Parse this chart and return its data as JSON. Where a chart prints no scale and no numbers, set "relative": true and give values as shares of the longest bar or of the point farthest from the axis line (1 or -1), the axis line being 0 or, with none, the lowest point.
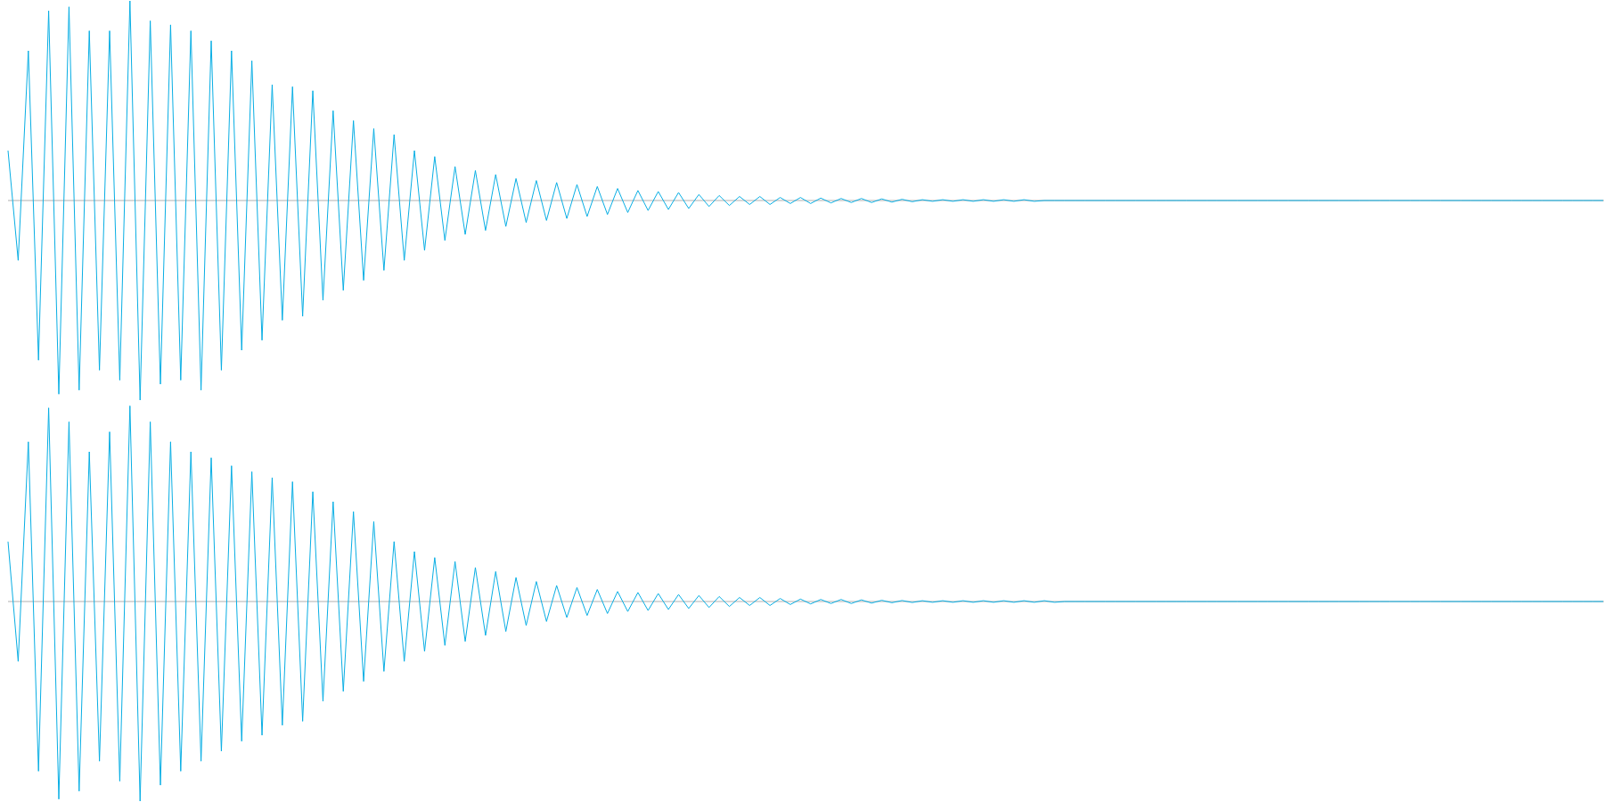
{
  "chart_data": [
    {
      "type": "line",
      "relative": true,
      "categories": [
        null,
        null,
        null,
        null,
        null,
        null,
        null,
        null,
        null,
        null,
        null,
        null,
        null,
        null,
        null,
        null,
        null,
        null,
        null,
        null,
        null,
        null,
        null,
        null,
        null,
        null,
        null,
        null,
        null,
        null,
        null,
        null,
        null,
        null,
        null,
        null,
        null,
        null,
        null,
        null,
        null,
        null,
        null,
        null,
        null,
        null,
        null,
        null,
        null,
        null,
        null,
        null,
        null,
        null,
        null,
        null,
        null,
        null,
        null,
        null,
        null,
        null,
        null,
        null,
        null,
        null,
        null,
        null,
        null,
        null,
        null,
        null,
        null,
        null,
        null,
        null,
        null,
        null,
        null,
        null,
        null,
        null,
        null,
        null,
        null,
        null,
        null,
        null,
        null,
        null,
        null,
        null,
        null,
        null,
        null,
        null,
        null,
        null,
        null,
        null,
        null,
        null,
        null,
        null,
        null,
        null,
        null,
        null,
        null,
        null,
        null,
        null,
        null,
        null,
        null,
        null,
        null,
        null,
        null,
        null,
        null,
        null,
        null,
        null,
        null,
        null,
        null,
        null,
        null,
        null,
        null,
        null,
        null,
        null,
        null,
        null,
        null,
        null,
        null,
        null,
        null,
        null,
        null,
        null,
        null,
        null,
        null,
        null,
        null,
        null,
        null,
        null,
        null,
        null,
        null,
        null,
        null,
        null
      ],
      "series": [
        {
          "color": "#08aee4",
          "values": [
            0.25,
            -0.3,
            0.75,
            -0.8,
            0.95,
            -0.97,
            0.97,
            -0.95,
            0.85,
            -0.85,
            0.85,
            -0.9,
            1,
            -1,
            0.9,
            -0.92,
            0.88,
            -0.9,
            0.85,
            -0.95,
            0.8,
            -0.85,
            0.75,
            -0.75,
            0.7,
            -0.7,
            0.58,
            -0.6,
            0.57,
            -0.58,
            0.55,
            -0.5,
            0.45,
            -0.45,
            0.4,
            -0.4,
            0.36,
            -0.35,
            0.33,
            -0.3,
            0.25,
            -0.25,
            0.22,
            -0.2,
            0.17,
            -0.17,
            0.15,
            -0.15,
            0.13,
            -0.13,
            0.11,
            -0.11,
            0.1,
            -0.1,
            0.09,
            -0.09,
            0.08,
            -0.08,
            0.07,
            -0.07,
            0.06,
            -0.06,
            0.05,
            -0.05,
            0.045,
            -0.045,
            0.04,
            -0.04,
            0.03,
            -0.03,
            0.025,
            -0.025,
            0.02,
            -0.02,
            0.02,
            -0.02,
            0.015,
            -0.015,
            0.015,
            -0.015,
            0.012,
            -0.012,
            0.01,
            -0.01,
            0.01,
            -0.01,
            0.008,
            -0.008,
            0.006,
            -0.006,
            0.004,
            -0.004,
            0.004,
            -0.004,
            0.004,
            -0.004,
            0.004,
            -0.004,
            0.004,
            -0.004,
            0.004,
            -0.004,
            0,
            0,
            0,
            0,
            0,
            0,
            0,
            0,
            0,
            0,
            0,
            0,
            0,
            0,
            0,
            0,
            0,
            0,
            0,
            0,
            0,
            0,
            0,
            0,
            0,
            0,
            0,
            0,
            0,
            0,
            0,
            0,
            0,
            0,
            0,
            0,
            0,
            0,
            0,
            0,
            0,
            0,
            0,
            0,
            0,
            0,
            0,
            0,
            0,
            0,
            0,
            0,
            0,
            0,
            0,
            0
          ]
        }
      ]
    },
    {
      "type": "line",
      "relative": true,
      "categories": [
        null,
        null,
        null,
        null,
        null,
        null,
        null,
        null,
        null,
        null,
        null,
        null,
        null,
        null,
        null,
        null,
        null,
        null,
        null,
        null,
        null,
        null,
        null,
        null,
        null,
        null,
        null,
        null,
        null,
        null,
        null,
        null,
        null,
        null,
        null,
        null,
        null,
        null,
        null,
        null,
        null,
        null,
        null,
        null,
        null,
        null,
        null,
        null,
        null,
        null,
        null,
        null,
        null,
        null,
        null,
        null,
        null,
        null,
        null,
        null,
        null,
        null,
        null,
        null,
        null,
        null,
        null,
        null,
        null,
        null,
        null,
        null,
        null,
        null,
        null,
        null,
        null,
        null,
        null,
        null,
        null,
        null,
        null,
        null,
        null,
        null,
        null,
        null,
        null,
        null,
        null,
        null,
        null,
        null,
        null,
        null,
        null,
        null,
        null,
        null,
        null,
        null,
        null,
        null,
        null,
        null,
        null,
        null,
        null,
        null,
        null,
        null,
        null,
        null,
        null,
        null,
        null,
        null,
        null,
        null,
        null,
        null,
        null,
        null,
        null,
        null,
        null,
        null,
        null,
        null,
        null,
        null,
        null,
        null,
        null,
        null,
        null,
        null,
        null,
        null,
        null,
        null,
        null,
        null,
        null,
        null,
        null,
        null,
        null,
        null,
        null,
        null,
        null,
        null,
        null,
        null,
        null,
        null
      ],
      "series": [
        {
          "color": "#08aee4",
          "values": [
            0.3,
            -0.3,
            0.8,
            -0.85,
            0.97,
            -0.99,
            0.9,
            -0.95,
            0.75,
            -0.8,
            0.85,
            -0.9,
            0.98,
            -1,
            0.9,
            -0.92,
            0.8,
            -0.85,
            0.75,
            -0.8,
            0.72,
            -0.75,
            0.68,
            -0.7,
            0.65,
            -0.67,
            0.62,
            -0.62,
            0.6,
            -0.6,
            0.55,
            -0.5,
            0.5,
            -0.45,
            0.45,
            -0.4,
            0.4,
            -0.35,
            0.3,
            -0.3,
            0.25,
            -0.25,
            0.22,
            -0.22,
            0.2,
            -0.2,
            0.17,
            -0.17,
            0.15,
            -0.15,
            0.12,
            -0.12,
            0.1,
            -0.1,
            0.08,
            -0.08,
            0.07,
            -0.07,
            0.06,
            -0.06,
            0.05,
            -0.05,
            0.045,
            -0.045,
            0.04,
            -0.04,
            0.035,
            -0.035,
            0.03,
            -0.03,
            0.025,
            -0.025,
            0.02,
            -0.02,
            0.02,
            -0.02,
            0.015,
            -0.015,
            0.012,
            -0.012,
            0.01,
            -0.01,
            0.01,
            -0.01,
            0.008,
            -0.008,
            0.006,
            -0.006,
            0.005,
            -0.005,
            0.004,
            -0.004,
            0.004,
            -0.004,
            0.004,
            -0.004,
            0.004,
            -0.004,
            0.004,
            -0.004,
            0.004,
            -0.004,
            0.004,
            -0.004,
            0,
            0,
            0,
            0,
            0,
            0,
            0,
            0,
            0,
            0,
            0,
            0,
            0,
            0,
            0,
            0,
            0,
            0,
            0,
            0,
            0,
            0,
            0,
            0,
            0,
            0,
            0,
            0,
            0,
            0,
            0,
            0,
            0,
            0,
            0,
            0,
            0,
            0,
            0,
            0,
            0,
            0,
            0,
            0,
            0,
            0,
            0,
            0,
            0,
            0,
            0,
            0,
            0,
            0
          ]
        }
      ]
    }
  ]
}
